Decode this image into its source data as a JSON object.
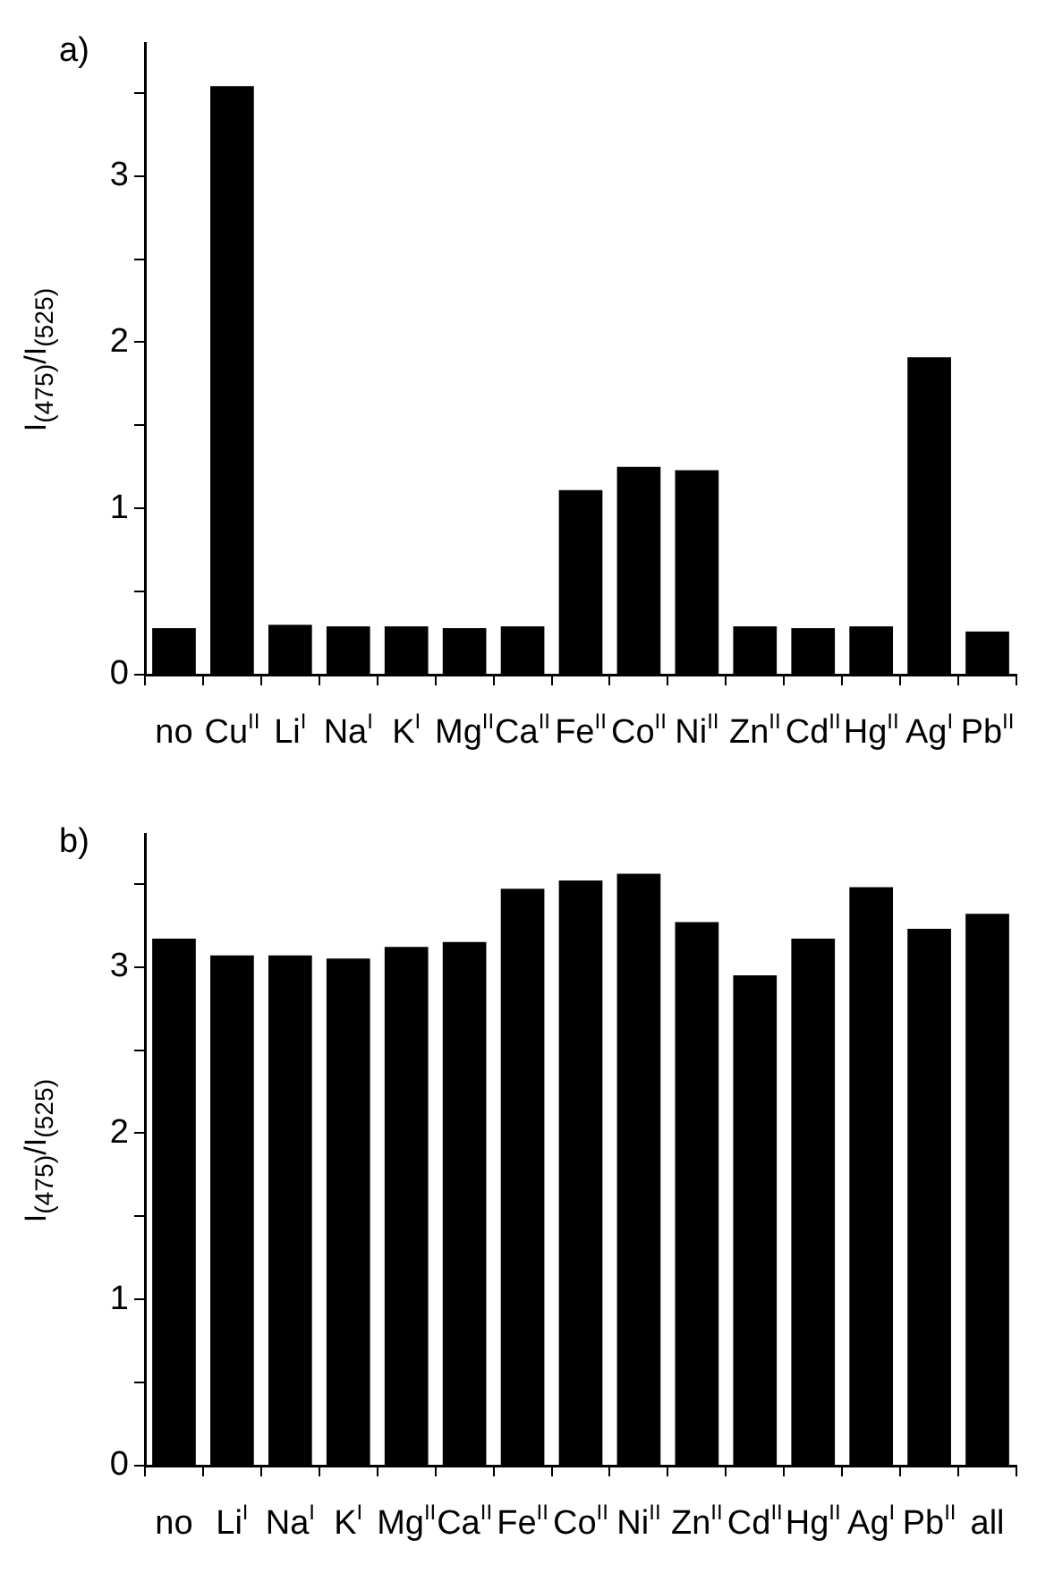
{
  "chart_data": [
    {
      "type": "bar",
      "title": "a)",
      "ylabel": "I$_{(475)}$/I$_{(525)}$",
      "categories": [
        "no",
        "Cu$^{II}$",
        "Li$^{I}$",
        "Na$^{I}$",
        "K$^{I}$",
        "Mg$^{II}$",
        "Ca$^{II}$",
        "Fe$^{II}$",
        "Co$^{II}$",
        "Ni$^{II}$",
        "Zn$^{II}$",
        "Cd$^{II}$",
        "Hg$^{II}$",
        "Ag$^{I}$",
        "Pb$^{II}$"
      ],
      "values": [
        0.28,
        3.54,
        0.3,
        0.29,
        0.29,
        0.28,
        0.29,
        1.11,
        1.25,
        1.23,
        0.29,
        0.28,
        0.29,
        1.91,
        0.26
      ],
      "color": "#000000",
      "ylim": [
        0,
        3.8
      ],
      "yticks": [
        0,
        {
          "value": 0.5,
          "label": null
        },
        1,
        {
          "value": 1.5,
          "label": null
        },
        2,
        {
          "value": 2.5,
          "label": null
        },
        3,
        {
          "value": 3.5,
          "label": null
        }
      ],
      "grid": false,
      "legend": false
    },
    {
      "type": "bar",
      "title": "b)",
      "ylabel": "I$_{(475)}$/I$_{(525)}$",
      "categories": [
        "no",
        "Li$^{I}$",
        "Na$^{I}$",
        "K$^{I}$",
        "Mg$^{II}$",
        "Ca$^{II}$",
        "Fe$^{II}$",
        "Co$^{II}$",
        "Ni$^{II}$",
        "Zn$^{II}$",
        "Cd$^{II}$",
        "Hg$^{II}$",
        "Ag$^{I}$",
        "Pb$^{II}$",
        "all"
      ],
      "values": [
        3.17,
        3.07,
        3.07,
        3.05,
        3.12,
        3.15,
        3.47,
        3.52,
        3.56,
        3.27,
        2.95,
        3.17,
        3.48,
        3.23,
        3.32
      ],
      "color": "#000000",
      "ylim": [
        0,
        3.8
      ],
      "yticks": [
        0,
        {
          "value": 0.5,
          "label": null
        },
        1,
        {
          "value": 1.5,
          "label": null
        },
        2,
        {
          "value": 2.5,
          "label": null
        },
        3,
        {
          "value": 3.5,
          "label": null
        }
      ],
      "grid": false,
      "legend": false
    }
  ]
}
